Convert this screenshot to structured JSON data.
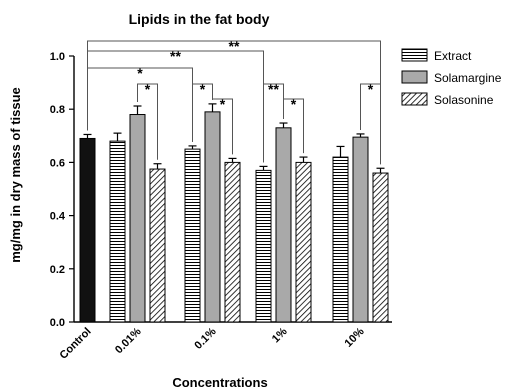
{
  "chart_data": {
    "type": "bar",
    "title": "Lipids in the fat body",
    "xlabel": "Concentrations",
    "ylabel": "mg/mg in dry mass of tissue",
    "ylim": [
      0,
      1.0
    ],
    "yticks": [
      "0.0",
      "0.2",
      "0.4",
      "0.6",
      "0.8",
      "1.0"
    ],
    "grid": false,
    "legend_position": "right",
    "control": {
      "label": "Control",
      "value": 0.69,
      "error": 0.015,
      "color": "#111111"
    },
    "categories": [
      "0.01%",
      "0.1%",
      "1%",
      "10%"
    ],
    "series": [
      {
        "name": "Extract",
        "pattern": "horizontal-lines",
        "values": [
          0.68,
          0.65,
          0.57,
          0.62
        ],
        "errors": [
          0.03,
          0.012,
          0.015,
          0.04
        ]
      },
      {
        "name": "Solamargine",
        "pattern": "solid-gray",
        "values": [
          0.78,
          0.79,
          0.73,
          0.695
        ],
        "errors": [
          0.032,
          0.03,
          0.018,
          0.012
        ]
      },
      {
        "name": "Solasonine",
        "pattern": "diagonal-lines",
        "values": [
          0.575,
          0.6,
          0.6,
          0.56
        ],
        "errors": [
          0.02,
          0.015,
          0.02,
          0.018
        ]
      }
    ],
    "significance": [
      {
        "label": "**",
        "from": "Control",
        "to": "10% Solasonine"
      },
      {
        "label": "**",
        "from": "Control",
        "to": "1% Extract"
      },
      {
        "label": "*",
        "from": "Control",
        "to": "0.1% Extract"
      },
      {
        "label": "*",
        "from": "0.01% Solamargine",
        "to": "0.01% Solasonine"
      },
      {
        "label": "*",
        "from": "0.1% Extract",
        "to": "0.1% Solamargine"
      },
      {
        "label": "*",
        "from": "0.1% Solamargine",
        "to": "0.1% Solasonine"
      },
      {
        "label": "**",
        "from": "1% Extract",
        "to": "1% Solamargine"
      },
      {
        "label": "*",
        "from": "1% Solamargine",
        "to": "1% Solasonine"
      },
      {
        "label": "*",
        "from": "10% Solamargine",
        "to": "10% Solasonine"
      }
    ]
  }
}
